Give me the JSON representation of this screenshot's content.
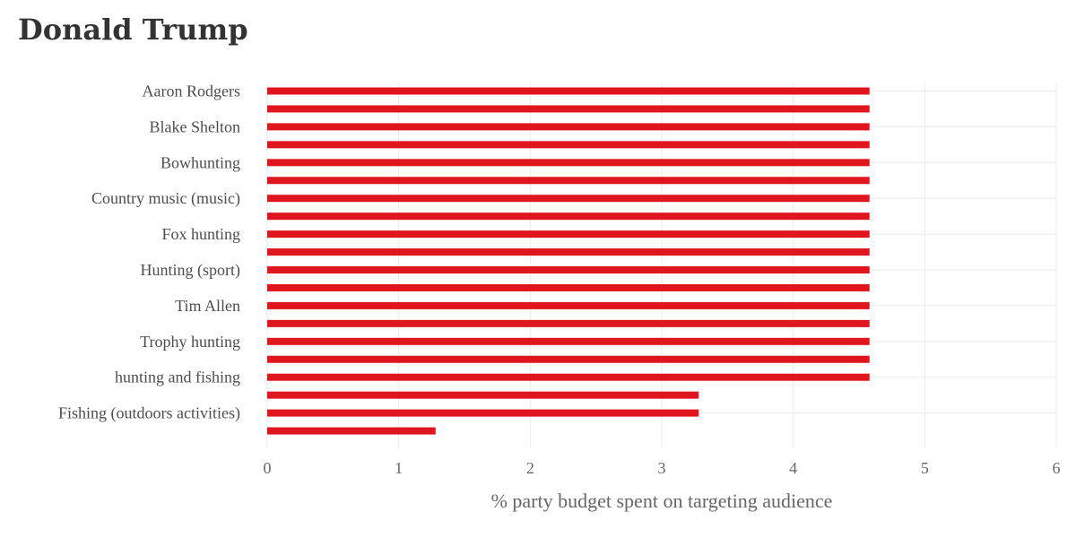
{
  "chart_data": {
    "type": "bar",
    "orientation": "horizontal",
    "title": "Donald Trump",
    "xlabel": "% party budget spent on targeting audience",
    "ylabel": "",
    "xlim": [
      0,
      6
    ],
    "xticks": [
      0,
      1,
      2,
      3,
      4,
      5,
      6
    ],
    "grid": true,
    "bar_color": "#e0161f",
    "bars": [
      {
        "value": 4.58,
        "label": "Aaron Rodgers"
      },
      {
        "value": 4.58,
        "label": ""
      },
      {
        "value": 4.58,
        "label": "Blake Shelton"
      },
      {
        "value": 4.58,
        "label": ""
      },
      {
        "value": 4.58,
        "label": "Bowhunting"
      },
      {
        "value": 4.58,
        "label": ""
      },
      {
        "value": 4.58,
        "label": "Country music (music)"
      },
      {
        "value": 4.58,
        "label": ""
      },
      {
        "value": 4.58,
        "label": "Fox hunting"
      },
      {
        "value": 4.58,
        "label": ""
      },
      {
        "value": 4.58,
        "label": "Hunting (sport)"
      },
      {
        "value": 4.58,
        "label": ""
      },
      {
        "value": 4.58,
        "label": "Tim Allen"
      },
      {
        "value": 4.58,
        "label": ""
      },
      {
        "value": 4.58,
        "label": "Trophy hunting"
      },
      {
        "value": 4.58,
        "label": ""
      },
      {
        "value": 4.58,
        "label": "hunting and fishing"
      },
      {
        "value": 3.28,
        "label": ""
      },
      {
        "value": 3.28,
        "label": "Fishing (outdoors activities)"
      },
      {
        "value": 1.28,
        "label": ""
      }
    ]
  }
}
